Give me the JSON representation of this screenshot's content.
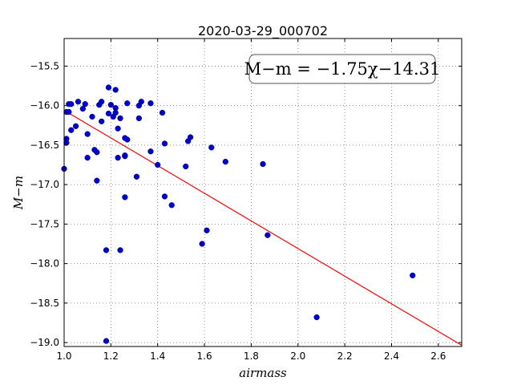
{
  "chart_data": {
    "type": "scatter",
    "title": "2020-03-29_000702",
    "xlabel": "airmass",
    "ylabel": "M−m",
    "xlim": [
      1.0,
      2.7
    ],
    "ylim": [
      -19.05,
      -15.15
    ],
    "y_inverted": true,
    "grid": true,
    "xticks": [
      "1.0",
      "1.2",
      "1.4",
      "1.6",
      "1.8",
      "2.0",
      "2.2",
      "2.4",
      "2.6"
    ],
    "yticks": [
      "−15.5",
      "−16.0",
      "−16.5",
      "−17.0",
      "−17.5",
      "−18.0",
      "−18.5",
      "−19.0"
    ],
    "annotation": "M−m = −1.75χ−14.31",
    "fit": {
      "slope": -1.75,
      "intercept": -14.31,
      "color": "#ff0000"
    },
    "point_color": "#0000cc",
    "points": [
      [
        1.0,
        -16.8
      ],
      [
        1.01,
        -16.42
      ],
      [
        1.01,
        -16.47
      ],
      [
        1.01,
        -16.08
      ],
      [
        1.02,
        -15.98
      ],
      [
        1.02,
        -16.08
      ],
      [
        1.03,
        -15.98
      ],
      [
        1.03,
        -16.31
      ],
      [
        1.05,
        -16.26
      ],
      [
        1.06,
        -15.95
      ],
      [
        1.08,
        -16.04
      ],
      [
        1.09,
        -15.98
      ],
      [
        1.1,
        -16.36
      ],
      [
        1.1,
        -16.66
      ],
      [
        1.12,
        -16.14
      ],
      [
        1.13,
        -16.56
      ],
      [
        1.14,
        -16.59
      ],
      [
        1.14,
        -16.95
      ],
      [
        1.15,
        -15.99
      ],
      [
        1.16,
        -16.2
      ],
      [
        1.16,
        -15.95
      ],
      [
        1.18,
        -17.83
      ],
      [
        1.18,
        -18.98
      ],
      [
        1.19,
        -15.77
      ],
      [
        1.19,
        -16.1
      ],
      [
        1.2,
        -15.99
      ],
      [
        1.21,
        -16.14
      ],
      [
        1.22,
        -15.8
      ],
      [
        1.22,
        -16.09
      ],
      [
        1.22,
        -16.03
      ],
      [
        1.23,
        -16.66
      ],
      [
        1.23,
        -16.29
      ],
      [
        1.24,
        -16.16
      ],
      [
        1.24,
        -17.83
      ],
      [
        1.26,
        -16.41
      ],
      [
        1.26,
        -16.64
      ],
      [
        1.26,
        -17.16
      ],
      [
        1.26,
        -16.63
      ],
      [
        1.27,
        -16.43
      ],
      [
        1.27,
        -15.97
      ],
      [
        1.31,
        -16.9
      ],
      [
        1.32,
        -16.16
      ],
      [
        1.32,
        -16.0
      ],
      [
        1.33,
        -15.95
      ],
      [
        1.37,
        -15.97
      ],
      [
        1.37,
        -16.58
      ],
      [
        1.4,
        -16.75
      ],
      [
        1.42,
        -16.09
      ],
      [
        1.43,
        -16.48
      ],
      [
        1.43,
        -17.15
      ],
      [
        1.46,
        -17.26
      ],
      [
        1.52,
        -16.77
      ],
      [
        1.53,
        -16.45
      ],
      [
        1.54,
        -16.4
      ],
      [
        1.59,
        -17.75
      ],
      [
        1.61,
        -17.58
      ],
      [
        1.63,
        -16.53
      ],
      [
        1.69,
        -16.71
      ],
      [
        1.85,
        -16.74
      ],
      [
        1.87,
        -17.64
      ],
      [
        2.08,
        -18.68
      ],
      [
        2.49,
        -18.15
      ]
    ]
  }
}
